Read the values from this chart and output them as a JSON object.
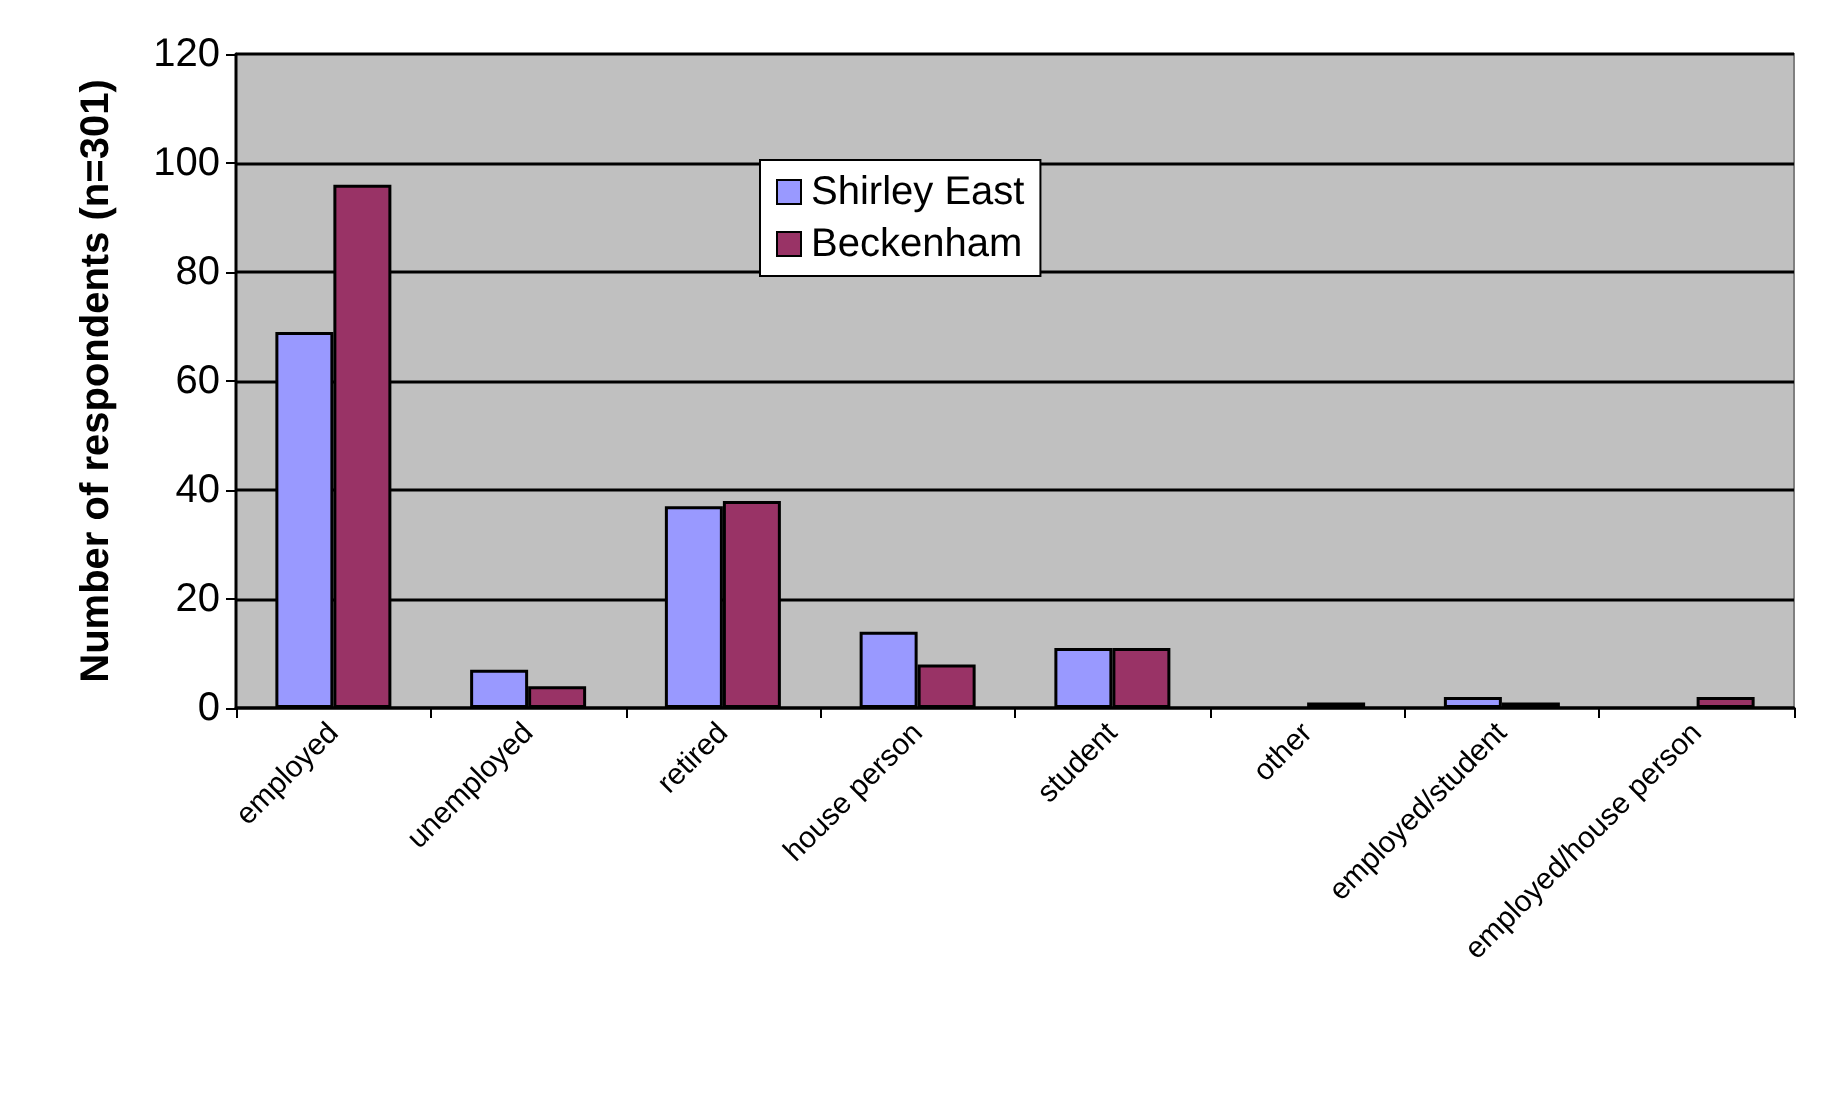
{
  "chart_data": {
    "type": "bar",
    "ylabel": "Number of respondents (n=301)",
    "categories": [
      "employed",
      "unemployed",
      "retired",
      "house person",
      "student",
      "other",
      "employed/student",
      "employed/house person"
    ],
    "series": [
      {
        "name": "Shirley East",
        "color": "#9999ff",
        "values": [
          69,
          7,
          37,
          14,
          11,
          0,
          2,
          0
        ]
      },
      {
        "name": "Beckenham",
        "color": "#993366",
        "values": [
          96,
          4,
          38,
          8,
          11,
          1,
          1,
          2
        ]
      }
    ],
    "ylim": [
      0,
      120
    ],
    "yticks": [
      0,
      20,
      40,
      60,
      80,
      100,
      120
    ],
    "grid": "y",
    "legend": "top"
  }
}
